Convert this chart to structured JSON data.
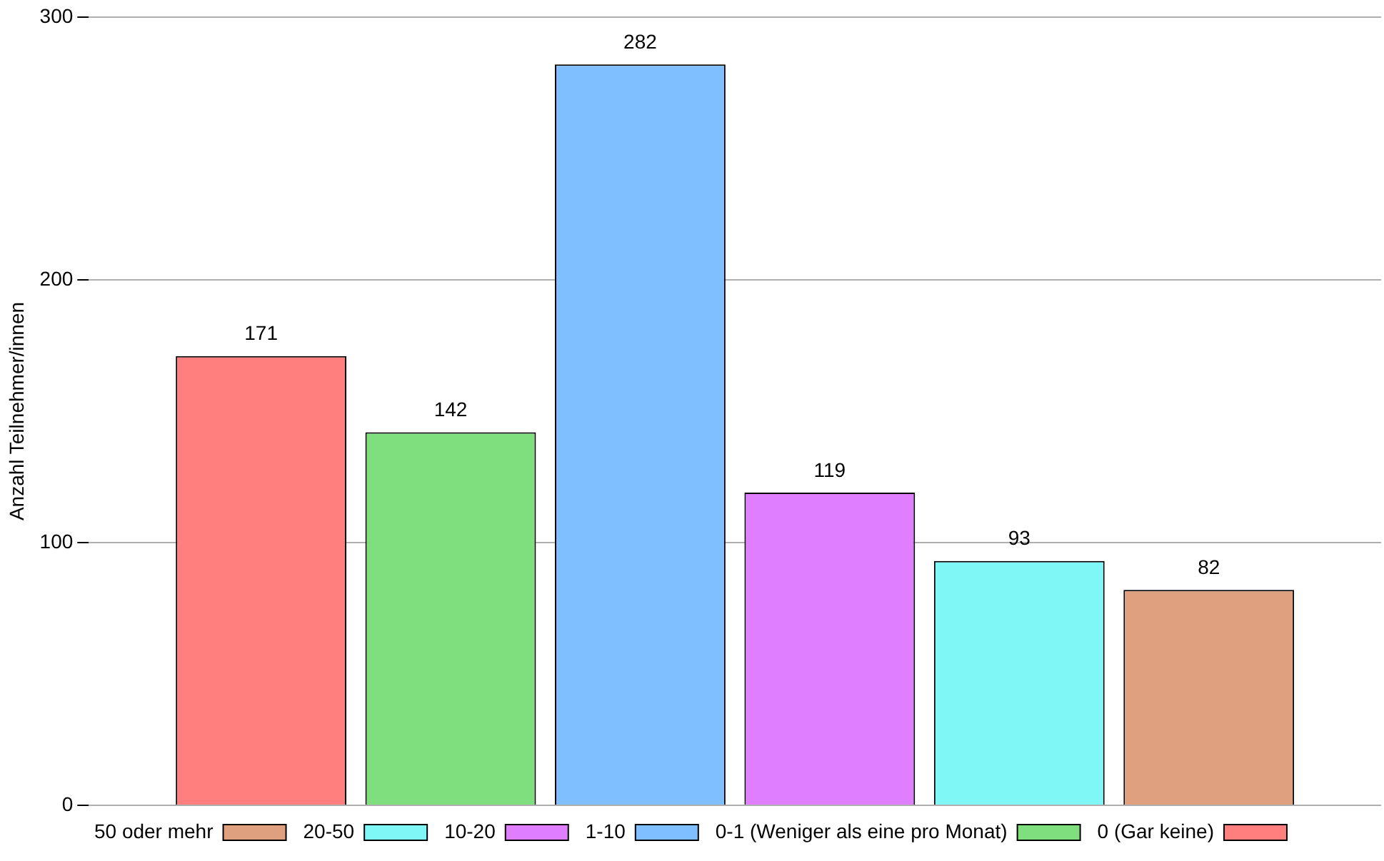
{
  "chart_data": {
    "type": "bar",
    "ylabel": "Anzahl Teilnehmer/innen",
    "categories": [
      null
    ],
    "series": [
      {
        "name": "0 (Gar keine)",
        "color": "#ff7f7f",
        "values": [
          171
        ]
      },
      {
        "name": "0-1 (Weniger als eine pro Monat)",
        "color": "#7fdf7f",
        "values": [
          142
        ]
      },
      {
        "name": "1-10",
        "color": "#7fbfff",
        "values": [
          282
        ]
      },
      {
        "name": "10-20",
        "color": "#df7fff",
        "values": [
          119
        ]
      },
      {
        "name": "20-50",
        "color": "#7ff7f7",
        "values": [
          93
        ]
      },
      {
        "name": "50 oder mehr",
        "color": "#dfa07f",
        "values": [
          82
        ]
      }
    ],
    "ylim": [
      0,
      300
    ],
    "yticks": [
      0,
      100,
      200,
      300
    ],
    "grid": "y",
    "legend": "bottom",
    "tick_labels": "y",
    "data_labels": true
  }
}
